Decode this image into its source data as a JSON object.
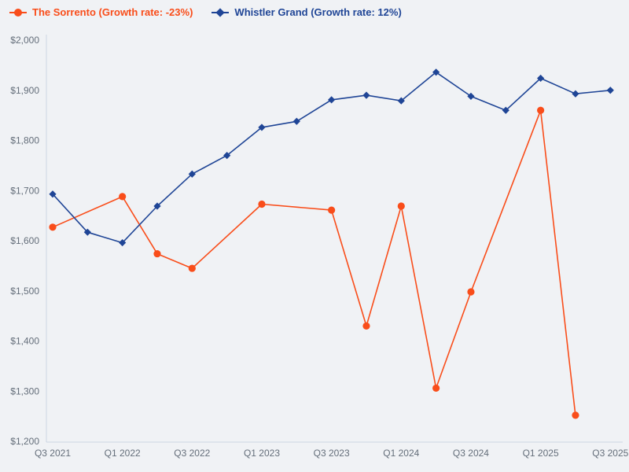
{
  "page": {
    "background_color": "#f0f2f5",
    "axis_line_color": "#ccd6e4",
    "tick_text_color": "#646e7a"
  },
  "legend": {
    "items": [
      {
        "label": "The Sorrento (Growth rate: -23%)",
        "color": "#f94d1a",
        "marker": "circle"
      },
      {
        "label": "Whistler Grand (Growth rate: 12%)",
        "color": "#1f4596",
        "marker": "diamond"
      }
    ]
  },
  "chart_data": {
    "type": "line",
    "title": "",
    "xlabel": "",
    "ylabel": "",
    "categories": [
      "Q3 2021",
      "Q4 2021",
      "Q1 2022",
      "Q2 2022",
      "Q3 2022",
      "Q4 2022",
      "Q1 2023",
      "Q2 2023",
      "Q3 2023",
      "Q4 2023",
      "Q1 2024",
      "Q2 2024",
      "Q3 2024",
      "Q4 2024",
      "Q1 2025",
      "Q2 2025",
      "Q3 2025"
    ],
    "series": [
      {
        "name": "The Sorrento",
        "growth_rate": "-23%",
        "color": "#f94d1a",
        "marker": "circle",
        "values": [
          1627,
          null,
          1688,
          1574,
          1545,
          null,
          1673,
          null,
          1661,
          1430,
          1669,
          1306,
          1498,
          null,
          1860,
          1252,
          null
        ]
      },
      {
        "name": "Whistler Grand",
        "growth_rate": "12%",
        "color": "#1f4596",
        "marker": "diamond",
        "values": [
          1693,
          1617,
          1596,
          1669,
          1733,
          1770,
          1826,
          1838,
          1881,
          1890,
          1879,
          1936,
          1888,
          1860,
          1924,
          1893,
          1900
        ]
      }
    ],
    "ylim": [
      1200,
      2000
    ],
    "y_step": 100,
    "y_tick_labels": [
      "$2,000",
      "$1,900",
      "$1,800",
      "$1,700",
      "$1,600",
      "$1,500",
      "$1,400",
      "$1,300",
      "$1,200"
    ],
    "x_tick_labels": [
      "Q3 2021",
      "Q1 2022",
      "Q3 2022",
      "Q1 2023",
      "Q3 2023",
      "Q1 2024",
      "Q3 2024",
      "Q1 2025",
      "Q3 2025"
    ],
    "x_tick_every": 2,
    "grid": false,
    "legend_position": "top-left",
    "span_gaps": true
  }
}
